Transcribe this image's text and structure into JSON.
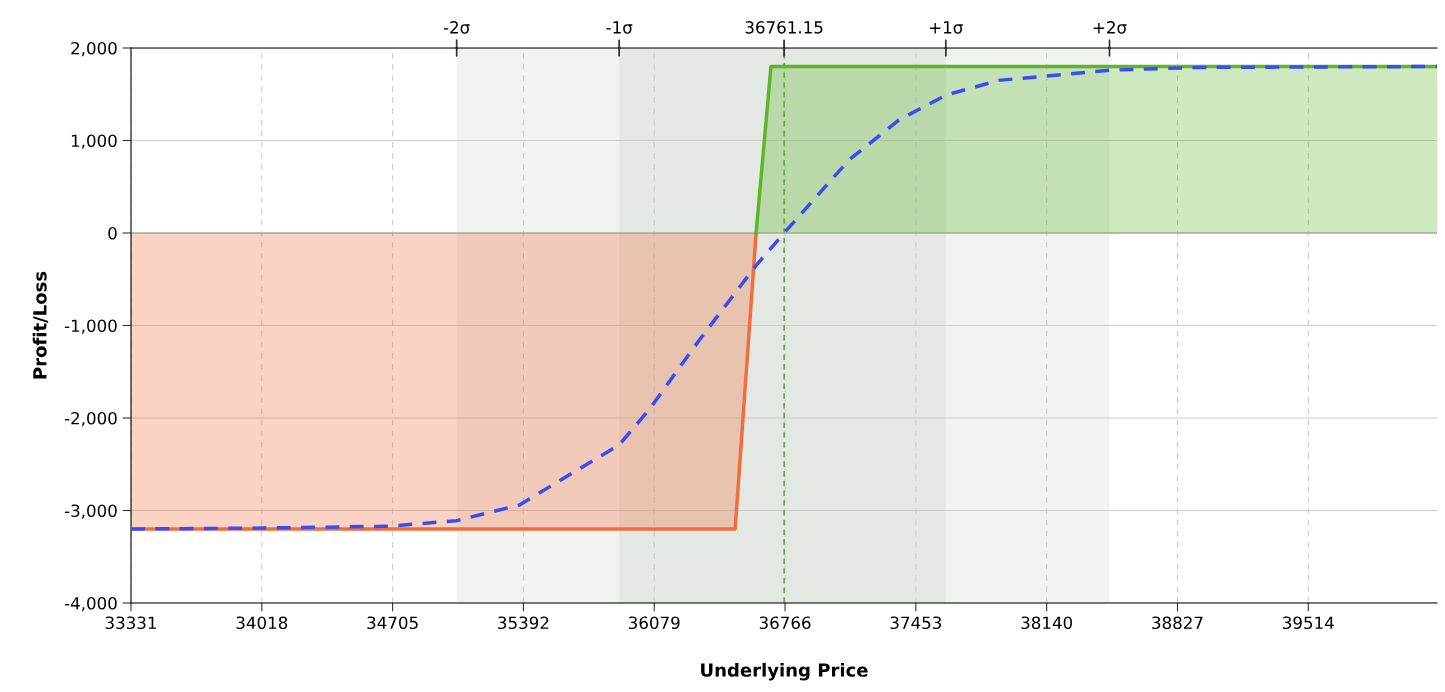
{
  "chart_data": {
    "type": "line",
    "xlabel": "Underlying Price",
    "ylabel": "Profit/Loss",
    "xlim": [
      33331,
      40190
    ],
    "xticks": [
      33331,
      34018,
      34705,
      35392,
      36079,
      36766,
      37453,
      38140,
      38827,
      39514
    ],
    "ylim": [
      -4000,
      2000
    ],
    "yticks": [
      {
        "value": -4000,
        "label": "-4,000"
      },
      {
        "value": -3000,
        "label": "-3,000"
      },
      {
        "value": -2000,
        "label": "-2,000"
      },
      {
        "value": -1000,
        "label": "-1,000"
      },
      {
        "value": 0,
        "label": "0"
      },
      {
        "value": 1000,
        "label": "1,000"
      },
      {
        "value": 2000,
        "label": "2,000"
      }
    ],
    "annotations": [
      {
        "text": "-2σ",
        "x": 35041,
        "y": 2000
      },
      {
        "text": "-1σ",
        "x": 35895,
        "y": 2000
      },
      {
        "text": "+1σ",
        "x": 37610,
        "y": 2000
      },
      {
        "text": "+2σ",
        "x": 38470,
        "y": 2000
      }
    ],
    "grid": true,
    "bands": [
      {
        "axis": "x",
        "from": 35041,
        "to": 38470,
        "label": null,
        "color": "#f1f3f1"
      },
      {
        "axis": "x",
        "from": 35895,
        "to": 37610,
        "label": null,
        "color": "#e3e8e3"
      }
    ],
    "ref_lines": [
      {
        "axis": "x",
        "value": 36761.15,
        "label": "36761.15",
        "color": "#4aa02c",
        "line_style": "dashed"
      }
    ],
    "series": [
      {
        "type": "area",
        "color": "#f26d3d",
        "x": [
          33331,
          36504,
          36614
        ],
        "values": [
          -3200,
          -3200,
          0
        ]
      },
      {
        "type": "area",
        "color": "#5db52a",
        "x": [
          36614,
          36692,
          40190
        ],
        "values": [
          0,
          1800,
          1800
        ]
      },
      {
        "color": "#3b4cf5",
        "line_style": "dashed",
        "x": [
          33331,
          34018,
          34689,
          35041,
          35371,
          35895,
          36052,
          36315,
          36614,
          36761,
          37102,
          37363,
          37610,
          37888,
          38470,
          38940,
          40190
        ],
        "values": [
          -3200,
          -3190,
          -3170,
          -3110,
          -2940,
          -2290,
          -1910,
          -1160,
          -350,
          0,
          790,
          1220,
          1490,
          1650,
          1760,
          1790,
          1800
        ]
      }
    ]
  }
}
